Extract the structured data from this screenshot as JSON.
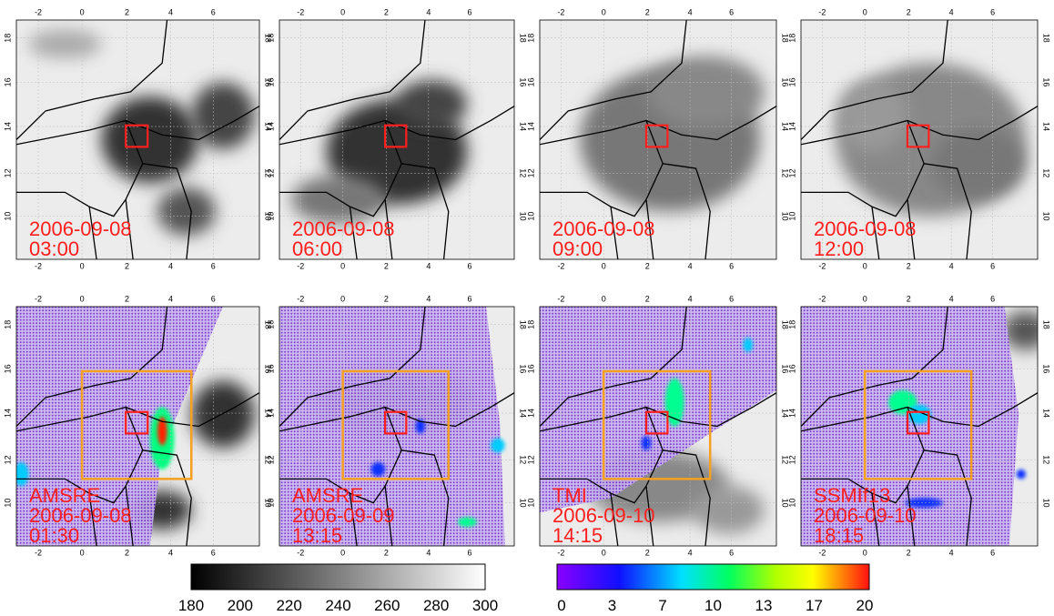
{
  "panels": [
    {
      "lines": [
        "2006-09-08",
        "03:00"
      ]
    },
    {
      "lines": [
        "2006-09-08",
        "06:00"
      ]
    },
    {
      "lines": [
        "2006-09-08",
        "09:00"
      ]
    },
    {
      "lines": [
        "2006-09-08",
        "12:00"
      ]
    },
    {
      "lines": [
        "AMSRE",
        "2006-09-08",
        "01:30"
      ]
    },
    {
      "lines": [
        "AMSRE",
        "2006-09-09",
        "13:15"
      ]
    },
    {
      "lines": [
        "TMI",
        "2006-09-10",
        "14:15"
      ]
    },
    {
      "lines": [
        "SSMIf13",
        "2006-09-10",
        "18:15"
      ]
    }
  ],
  "lon_ticks": [
    "-2",
    "0",
    "2",
    "4",
    "6"
  ],
  "lat_ticks": [
    "10",
    "12",
    "14",
    "16",
    "18"
  ],
  "colorbars": [
    {
      "ticks": [
        "180",
        "200",
        "220",
        "240",
        "260",
        "280",
        "300"
      ]
    },
    {
      "ticks": [
        "0",
        "3",
        "7",
        "10",
        "13",
        "17",
        "20"
      ]
    }
  ]
}
